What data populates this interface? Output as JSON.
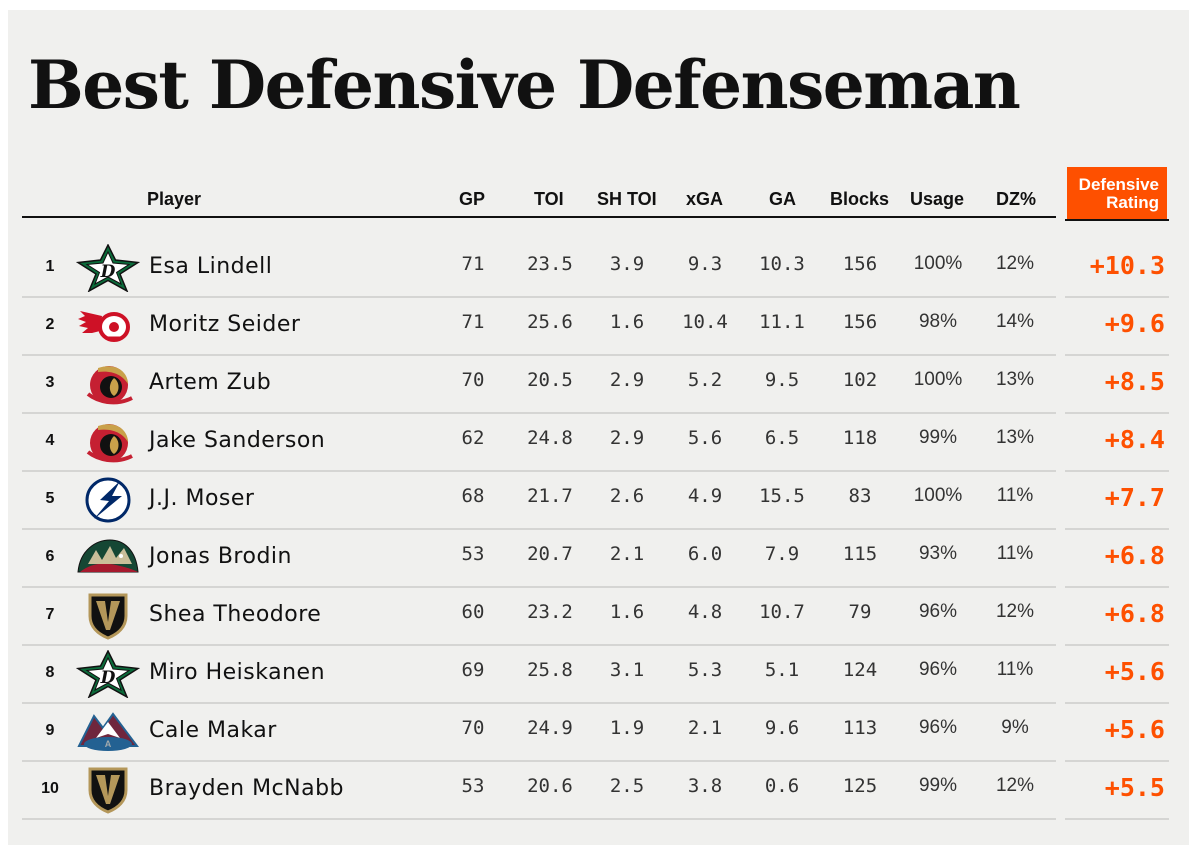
{
  "title": "Best Defensive Defenseman",
  "columns": {
    "player": "Player",
    "gp": "GP",
    "toi": "TOI",
    "sh_toi": "SH TOI",
    "xga": "xGA",
    "ga": "GA",
    "blocks": "Blocks",
    "usage": "Usage",
    "dz": "DZ%",
    "rating_line1": "Defensive",
    "rating_line2": "Rating"
  },
  "colors": {
    "accent": "#fe5000",
    "background": "#f0f0ee",
    "text": "#111111"
  },
  "chart_data": {
    "type": "table",
    "title": "Best Defensive Defenseman",
    "headers": [
      "",
      "",
      "Player",
      "GP",
      "TOI",
      "SH TOI",
      "xGA",
      "GA",
      "Blocks",
      "Usage",
      "DZ%",
      "Defensive Rating"
    ],
    "rows": [
      {
        "rank": "1",
        "team_logo": "dallas-stars-logo-icon",
        "player": "Esa Lindell",
        "gp": "71",
        "toi": "23.5",
        "sh_toi": "3.9",
        "xga": "9.3",
        "ga": "10.3",
        "blocks": "156",
        "usage": "100%",
        "dz": "12%",
        "rating": "+10.3"
      },
      {
        "rank": "2",
        "team_logo": "detroit-red-wings-logo-icon",
        "player": "Moritz Seider",
        "gp": "71",
        "toi": "25.6",
        "sh_toi": "1.6",
        "xga": "10.4",
        "ga": "11.1",
        "blocks": "156",
        "usage": "98%",
        "dz": "14%",
        "rating": "+9.6"
      },
      {
        "rank": "3",
        "team_logo": "ottawa-senators-logo-icon",
        "player": "Artem Zub",
        "gp": "70",
        "toi": "20.5",
        "sh_toi": "2.9",
        "xga": "5.2",
        "ga": "9.5",
        "blocks": "102",
        "usage": "100%",
        "dz": "13%",
        "rating": "+8.5"
      },
      {
        "rank": "4",
        "team_logo": "ottawa-senators-logo-icon",
        "player": "Jake Sanderson",
        "gp": "62",
        "toi": "24.8",
        "sh_toi": "2.9",
        "xga": "5.6",
        "ga": "6.5",
        "blocks": "118",
        "usage": "99%",
        "dz": "13%",
        "rating": "+8.4"
      },
      {
        "rank": "5",
        "team_logo": "tampa-bay-lightning-logo-icon",
        "player": "J.J. Moser",
        "gp": "68",
        "toi": "21.7",
        "sh_toi": "2.6",
        "xga": "4.9",
        "ga": "15.5",
        "blocks": "83",
        "usage": "100%",
        "dz": "11%",
        "rating": "+7.7"
      },
      {
        "rank": "6",
        "team_logo": "minnesota-wild-logo-icon",
        "player": "Jonas Brodin",
        "gp": "53",
        "toi": "20.7",
        "sh_toi": "2.1",
        "xga": "6.0",
        "ga": "7.9",
        "blocks": "115",
        "usage": "93%",
        "dz": "11%",
        "rating": "+6.8"
      },
      {
        "rank": "7",
        "team_logo": "vegas-golden-knights-logo-icon",
        "player": "Shea Theodore",
        "gp": "60",
        "toi": "23.2",
        "sh_toi": "1.6",
        "xga": "4.8",
        "ga": "10.7",
        "blocks": "79",
        "usage": "96%",
        "dz": "12%",
        "rating": "+6.8"
      },
      {
        "rank": "8",
        "team_logo": "dallas-stars-logo-icon",
        "player": "Miro Heiskanen",
        "gp": "69",
        "toi": "25.8",
        "sh_toi": "3.1",
        "xga": "5.3",
        "ga": "5.1",
        "blocks": "124",
        "usage": "96%",
        "dz": "11%",
        "rating": "+5.6"
      },
      {
        "rank": "9",
        "team_logo": "colorado-avalanche-logo-icon",
        "player": "Cale Makar",
        "gp": "70",
        "toi": "24.9",
        "sh_toi": "1.9",
        "xga": "2.1",
        "ga": "9.6",
        "blocks": "113",
        "usage": "96%",
        "dz": "9%",
        "rating": "+5.6"
      },
      {
        "rank": "10",
        "team_logo": "vegas-golden-knights-logo-icon",
        "player": "Brayden McNabb",
        "gp": "53",
        "toi": "20.6",
        "sh_toi": "2.5",
        "xga": "3.8",
        "ga": "0.6",
        "blocks": "125",
        "usage": "99%",
        "dz": "12%",
        "rating": "+5.5"
      }
    ]
  }
}
